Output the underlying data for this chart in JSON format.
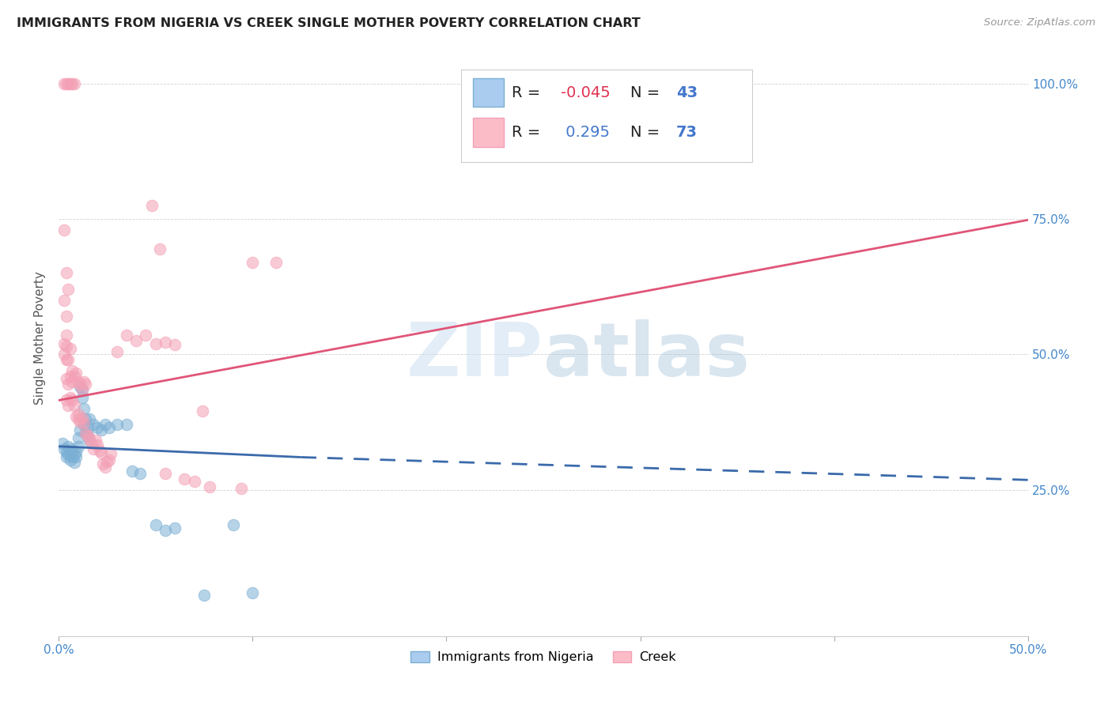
{
  "title": "IMMIGRANTS FROM NIGERIA VS CREEK SINGLE MOTHER POVERTY CORRELATION CHART",
  "source": "Source: ZipAtlas.com",
  "ylabel": "Single Mother Poverty",
  "legend_label_blue": "Immigrants from Nigeria",
  "legend_label_pink": "Creek",
  "background_color": "#ffffff",
  "watermark": "ZIPatlas",
  "blue_color": "#7bafd4",
  "pink_color": "#f4a0b5",
  "blue_scatter": [
    [
      0.002,
      0.335
    ],
    [
      0.003,
      0.325
    ],
    [
      0.004,
      0.32
    ],
    [
      0.004,
      0.31
    ],
    [
      0.005,
      0.315
    ],
    [
      0.005,
      0.33
    ],
    [
      0.006,
      0.32
    ],
    [
      0.006,
      0.305
    ],
    [
      0.007,
      0.31
    ],
    [
      0.007,
      0.325
    ],
    [
      0.008,
      0.315
    ],
    [
      0.008,
      0.3
    ],
    [
      0.009,
      0.31
    ],
    [
      0.009,
      0.32
    ],
    [
      0.01,
      0.345
    ],
    [
      0.01,
      0.33
    ],
    [
      0.011,
      0.36
    ],
    [
      0.011,
      0.44
    ],
    [
      0.012,
      0.435
    ],
    [
      0.012,
      0.42
    ],
    [
      0.013,
      0.4
    ],
    [
      0.013,
      0.37
    ],
    [
      0.014,
      0.38
    ],
    [
      0.014,
      0.355
    ],
    [
      0.015,
      0.365
    ],
    [
      0.015,
      0.35
    ],
    [
      0.016,
      0.38
    ],
    [
      0.016,
      0.34
    ],
    [
      0.018,
      0.37
    ],
    [
      0.02,
      0.365
    ],
    [
      0.022,
      0.36
    ],
    [
      0.024,
      0.37
    ],
    [
      0.026,
      0.365
    ],
    [
      0.03,
      0.37
    ],
    [
      0.035,
      0.37
    ],
    [
      0.038,
      0.285
    ],
    [
      0.042,
      0.28
    ],
    [
      0.05,
      0.185
    ],
    [
      0.055,
      0.175
    ],
    [
      0.06,
      0.18
    ],
    [
      0.075,
      0.055
    ],
    [
      0.09,
      0.185
    ],
    [
      0.1,
      0.06
    ]
  ],
  "pink_scatter": [
    [
      0.003,
      1.0
    ],
    [
      0.004,
      1.0
    ],
    [
      0.005,
      1.0
    ],
    [
      0.006,
      1.0
    ],
    [
      0.007,
      1.0
    ],
    [
      0.008,
      1.0
    ],
    [
      0.003,
      0.73
    ],
    [
      0.004,
      0.65
    ],
    [
      0.005,
      0.62
    ],
    [
      0.003,
      0.6
    ],
    [
      0.004,
      0.57
    ],
    [
      0.004,
      0.535
    ],
    [
      0.003,
      0.52
    ],
    [
      0.004,
      0.515
    ],
    [
      0.003,
      0.5
    ],
    [
      0.004,
      0.49
    ],
    [
      0.005,
      0.49
    ],
    [
      0.006,
      0.51
    ],
    [
      0.004,
      0.455
    ],
    [
      0.005,
      0.445
    ],
    [
      0.006,
      0.46
    ],
    [
      0.007,
      0.45
    ],
    [
      0.007,
      0.47
    ],
    [
      0.008,
      0.46
    ],
    [
      0.009,
      0.465
    ],
    [
      0.01,
      0.45
    ],
    [
      0.011,
      0.445
    ],
    [
      0.012,
      0.435
    ],
    [
      0.013,
      0.45
    ],
    [
      0.014,
      0.445
    ],
    [
      0.004,
      0.415
    ],
    [
      0.005,
      0.405
    ],
    [
      0.006,
      0.42
    ],
    [
      0.007,
      0.415
    ],
    [
      0.008,
      0.405
    ],
    [
      0.009,
      0.385
    ],
    [
      0.01,
      0.39
    ],
    [
      0.01,
      0.38
    ],
    [
      0.011,
      0.375
    ],
    [
      0.012,
      0.382
    ],
    [
      0.013,
      0.374
    ],
    [
      0.014,
      0.355
    ],
    [
      0.015,
      0.35
    ],
    [
      0.016,
      0.344
    ],
    [
      0.017,
      0.335
    ],
    [
      0.018,
      0.325
    ],
    [
      0.019,
      0.342
    ],
    [
      0.02,
      0.332
    ],
    [
      0.021,
      0.322
    ],
    [
      0.022,
      0.318
    ],
    [
      0.023,
      0.297
    ],
    [
      0.024,
      0.292
    ],
    [
      0.025,
      0.302
    ],
    [
      0.026,
      0.305
    ],
    [
      0.027,
      0.317
    ],
    [
      0.03,
      0.505
    ],
    [
      0.035,
      0.535
    ],
    [
      0.04,
      0.525
    ],
    [
      0.045,
      0.535
    ],
    [
      0.05,
      0.52
    ],
    [
      0.055,
      0.522
    ],
    [
      0.06,
      0.518
    ],
    [
      0.048,
      0.775
    ],
    [
      0.052,
      0.695
    ],
    [
      0.055,
      0.28
    ],
    [
      0.065,
      0.27
    ],
    [
      0.07,
      0.265
    ],
    [
      0.074,
      0.395
    ],
    [
      0.078,
      0.255
    ],
    [
      0.094,
      0.252
    ],
    [
      0.1,
      0.67
    ],
    [
      0.112,
      0.67
    ]
  ],
  "blue_line_solid": [
    [
      0.0,
      0.33
    ],
    [
      0.125,
      0.31
    ]
  ],
  "blue_line_dashed": [
    [
      0.125,
      0.31
    ],
    [
      0.5,
      0.268
    ]
  ],
  "pink_line": [
    [
      0.0,
      0.415
    ],
    [
      0.5,
      0.748
    ]
  ],
  "xlim": [
    0.0,
    0.5
  ],
  "ylim": [
    -0.02,
    1.08
  ],
  "ytick_vals": [
    0.25,
    0.5,
    0.75,
    1.0
  ],
  "ytick_labels": [
    "25.0%",
    "50.0%",
    "75.0%",
    "100.0%"
  ],
  "xtick_vals": [
    0.0,
    0.1,
    0.2,
    0.3,
    0.4,
    0.5
  ],
  "xlabel_only_ends": true
}
